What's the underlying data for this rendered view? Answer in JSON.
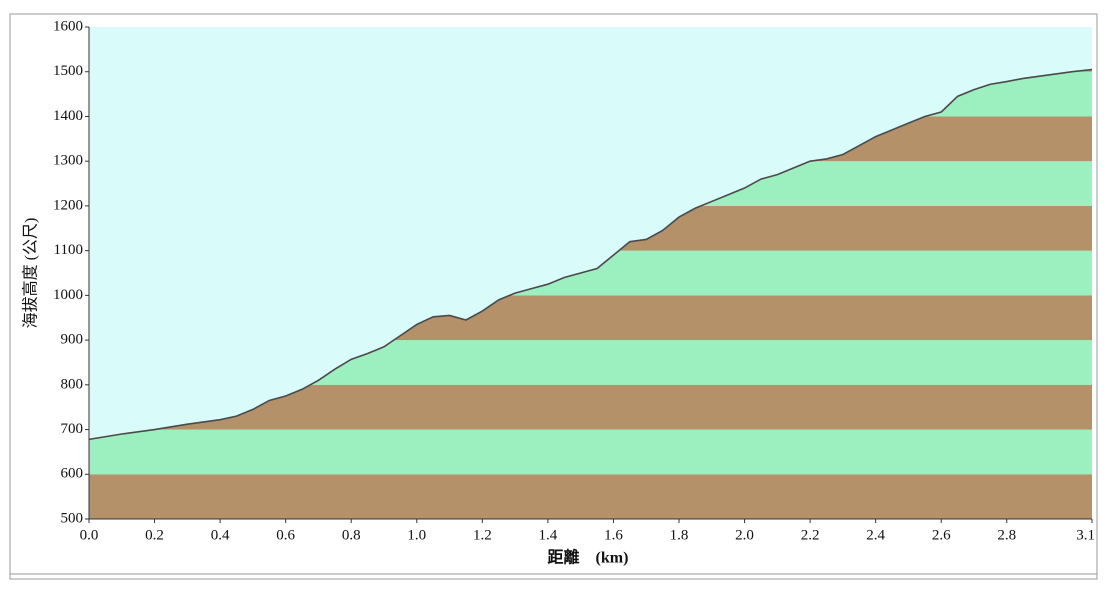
{
  "chart_data": {
    "type": "area",
    "y_label": "海拔高度 (公尺)",
    "x_label": "距離　(km)",
    "x": [
      0.0,
      0.1,
      0.2,
      0.3,
      0.4,
      0.45,
      0.5,
      0.55,
      0.6,
      0.65,
      0.7,
      0.75,
      0.8,
      0.85,
      0.9,
      0.95,
      1.0,
      1.05,
      1.1,
      1.15,
      1.2,
      1.25,
      1.3,
      1.35,
      1.4,
      1.45,
      1.5,
      1.55,
      1.6,
      1.65,
      1.7,
      1.75,
      1.8,
      1.85,
      1.9,
      1.95,
      2.0,
      2.05,
      2.1,
      2.15,
      2.2,
      2.25,
      2.3,
      2.35,
      2.4,
      2.45,
      2.5,
      2.55,
      2.6,
      2.65,
      2.7,
      2.75,
      2.8,
      2.85,
      2.9,
      2.95,
      3.0,
      3.06
    ],
    "values": [
      678,
      690,
      700,
      712,
      722,
      730,
      745,
      765,
      775,
      790,
      810,
      835,
      857,
      870,
      885,
      910,
      935,
      952,
      955,
      945,
      965,
      990,
      1005,
      1015,
      1025,
      1040,
      1050,
      1060,
      1090,
      1120,
      1125,
      1145,
      1175,
      1195,
      1210,
      1225,
      1240,
      1260,
      1270,
      1285,
      1300,
      1305,
      1315,
      1335,
      1355,
      1370,
      1385,
      1400,
      1410,
      1445,
      1460,
      1472,
      1478,
      1485,
      1490,
      1495,
      1500,
      1505
    ],
    "xlim": [
      0,
      3.06
    ],
    "xticks": [
      {
        "value": 0,
        "label": "0.0"
      },
      0.2,
      0.4,
      0.6,
      0.8,
      {
        "value": 1,
        "label": "1.0"
      },
      1.2,
      1.4,
      1.6,
      1.8,
      {
        "value": 2,
        "label": "2.0"
      },
      2.2,
      2.4,
      2.6,
      2.8,
      {
        "value": 3.06,
        "label": "3.1"
      }
    ],
    "ylim": [
      500,
      1600
    ],
    "yticks": [
      500,
      600,
      700,
      800,
      900,
      1000,
      1100,
      1200,
      1300,
      1400,
      1500,
      1600
    ],
    "color": "#4a4a4a",
    "band_colors": [
      "#b5916a",
      "#9cefbf"
    ],
    "background": "#d9fbfa"
  }
}
